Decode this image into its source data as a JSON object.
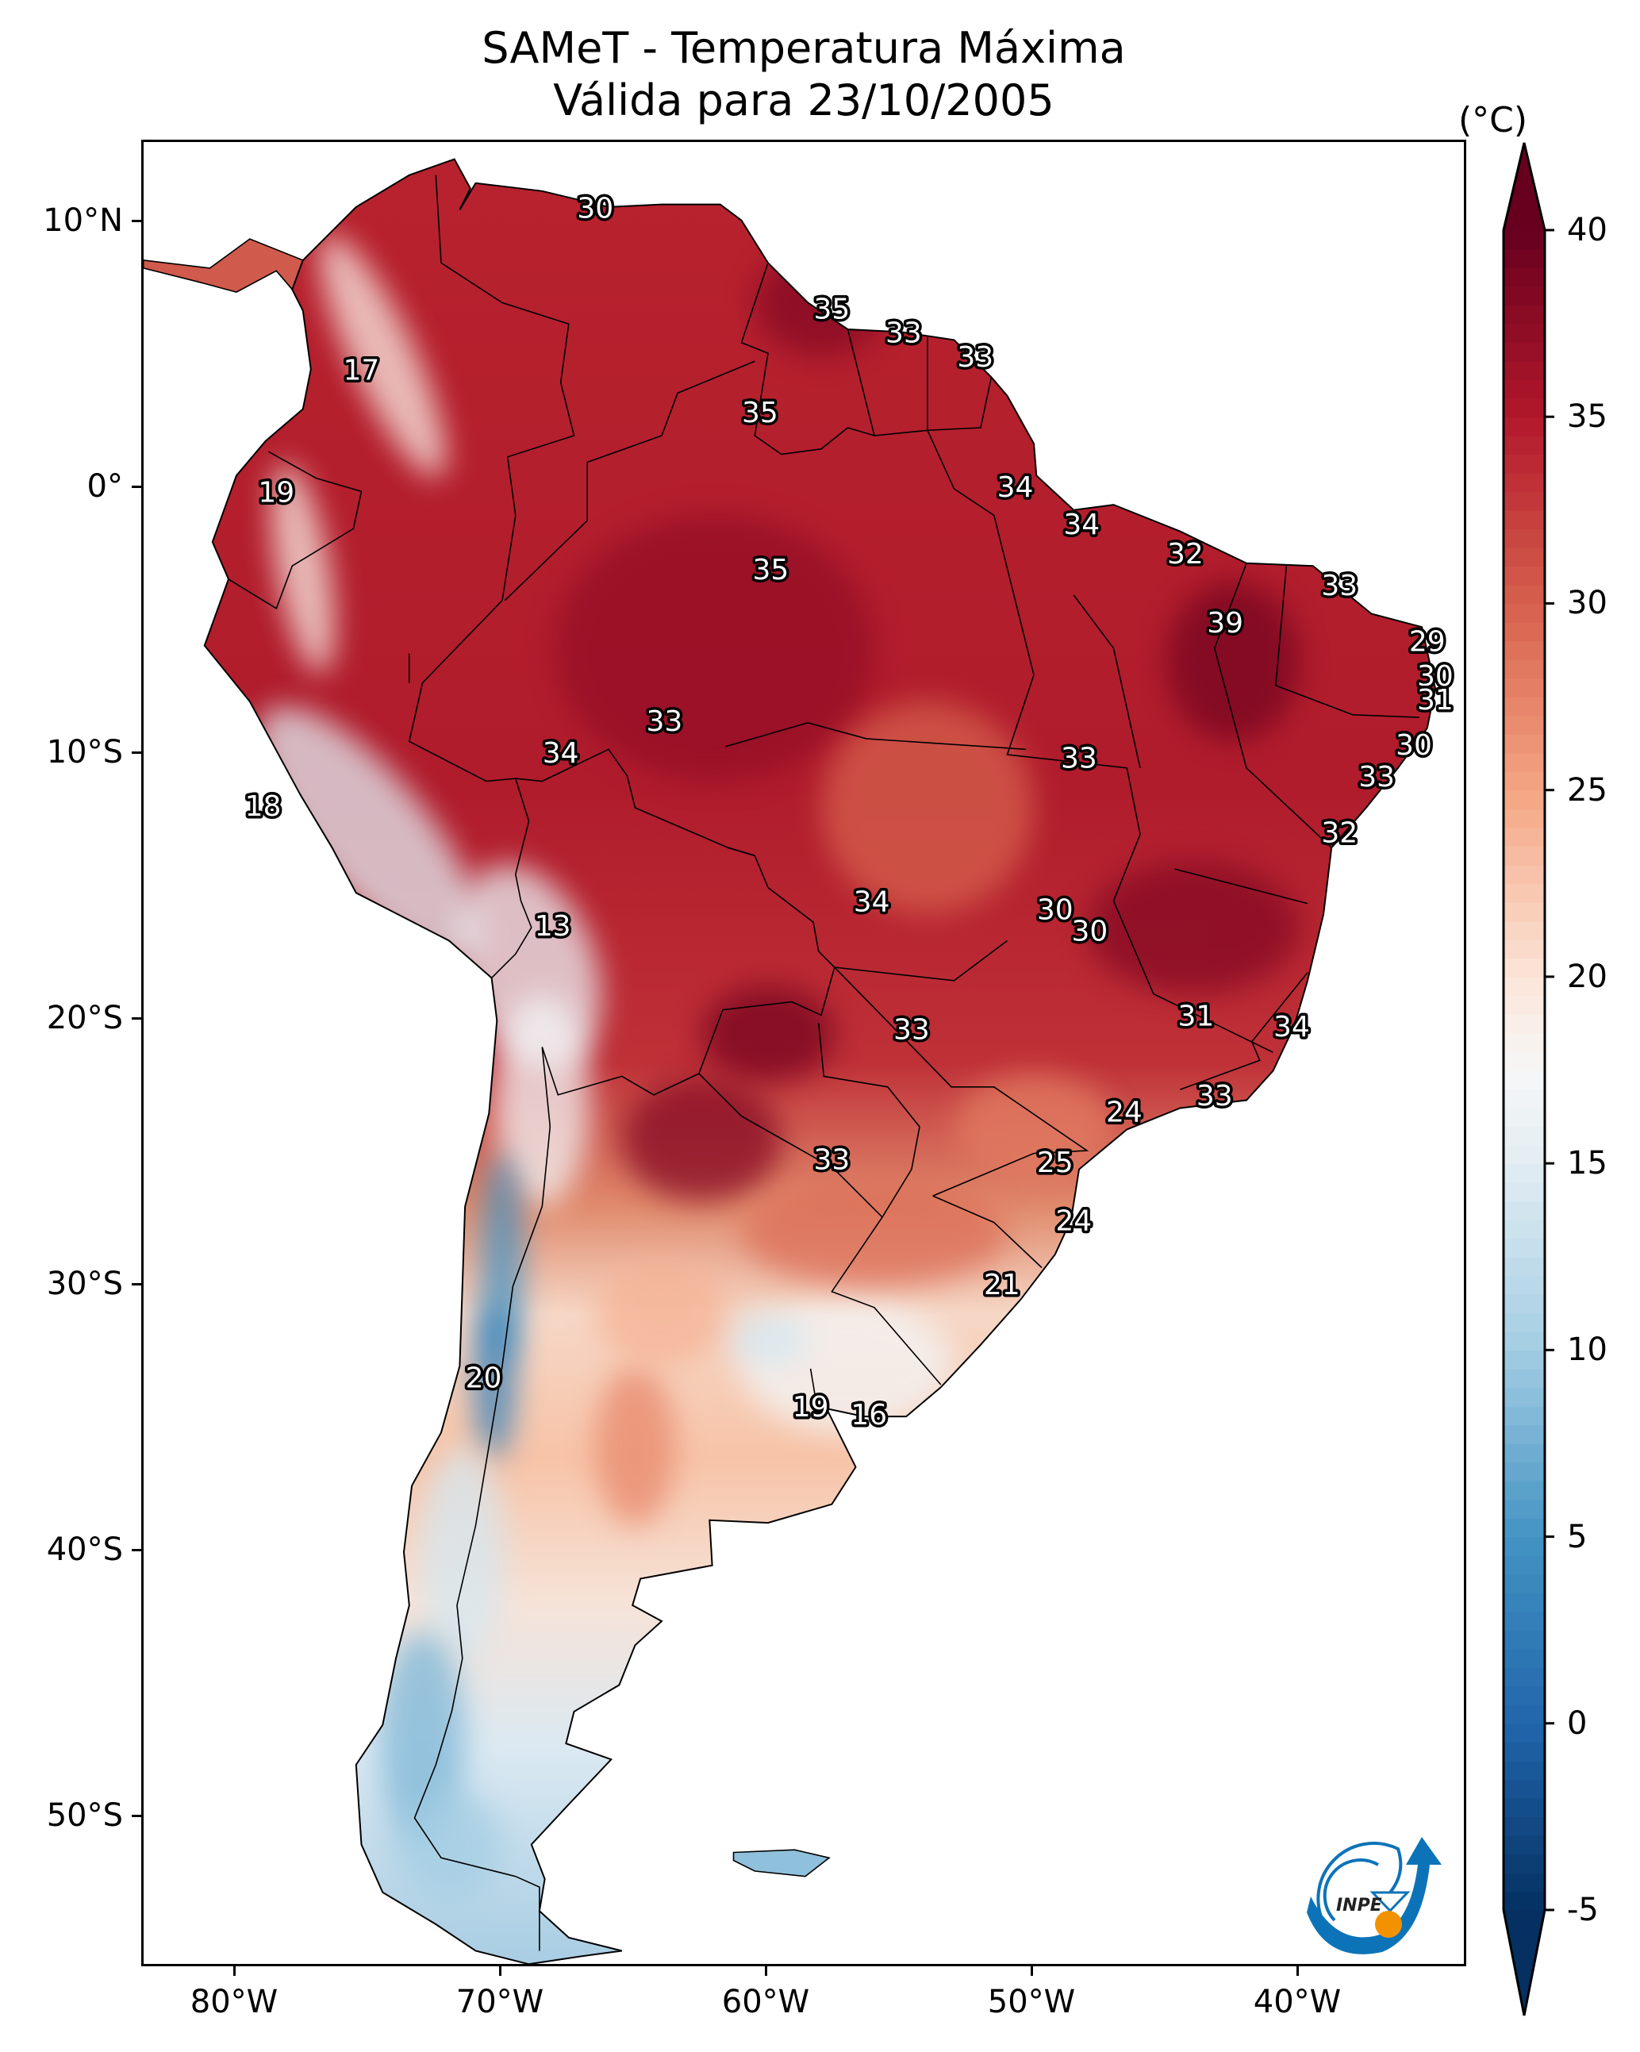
{
  "title": {
    "line1": "SAMeT - Temperatura Máxima",
    "line2": "Válida para 23/10/2005"
  },
  "chart_data": {
    "type": "heatmap",
    "title": "SAMeT - Temperatura Máxima",
    "subtitle": "Válida para 23/10/2005",
    "projection": "PlateCarree",
    "extent_lon": [
      -83.5,
      -33.5
    ],
    "extent_lat": [
      -56.5,
      12.5
    ],
    "x_ticks": [
      {
        "value": -80,
        "label": "80°W"
      },
      {
        "value": -70,
        "label": "70°W"
      },
      {
        "value": -60,
        "label": "60°W"
      },
      {
        "value": -50,
        "label": "50°W"
      },
      {
        "value": -40,
        "label": "40°W"
      }
    ],
    "y_ticks": [
      {
        "value": 10,
        "label": "10°N"
      },
      {
        "value": 0,
        "label": "0°"
      },
      {
        "value": -10,
        "label": "10°S"
      },
      {
        "value": -20,
        "label": "20°S"
      },
      {
        "value": -30,
        "label": "30°S"
      },
      {
        "value": -40,
        "label": "40°S"
      },
      {
        "value": -50,
        "label": "50°S"
      }
    ],
    "colorbar": {
      "label": "(°C)",
      "colormap": "RdBu_r",
      "vmin": -5,
      "vmax": 40,
      "extend": "both",
      "ticks": [
        40,
        35,
        30,
        25,
        20,
        15,
        10,
        5,
        0,
        -5
      ],
      "tick_labels": [
        "40",
        "35",
        "30",
        "25",
        "20",
        "15",
        "10",
        "5",
        "0",
        "-5"
      ],
      "stops": [
        {
          "v": -5,
          "c": "#053061"
        },
        {
          "v": 0,
          "c": "#2166ac"
        },
        {
          "v": 5,
          "c": "#4393c3"
        },
        {
          "v": 10,
          "c": "#a3cde3"
        },
        {
          "v": 15,
          "c": "#e2edf3"
        },
        {
          "v": 17.5,
          "c": "#f7f7f7"
        },
        {
          "v": 20,
          "c": "#fbe5d8"
        },
        {
          "v": 25,
          "c": "#f4a582"
        },
        {
          "v": 30,
          "c": "#d6604d"
        },
        {
          "v": 35,
          "c": "#b2182b"
        },
        {
          "v": 40,
          "c": "#67001f"
        }
      ]
    },
    "station_values": [
      {
        "lon": -66.5,
        "lat": 10.5,
        "value": 30
      },
      {
        "lon": -75.3,
        "lat": 4.4,
        "value": 17
      },
      {
        "lon": -78.5,
        "lat": -0.2,
        "value": 19
      },
      {
        "lon": -57.6,
        "lat": 6.7,
        "value": 35
      },
      {
        "lon": -54.9,
        "lat": 5.8,
        "value": 33
      },
      {
        "lon": -52.2,
        "lat": 4.9,
        "value": 33
      },
      {
        "lon": -60.3,
        "lat": 2.8,
        "value": 35
      },
      {
        "lon": -50.7,
        "lat": 0.0,
        "value": 34
      },
      {
        "lon": -48.2,
        "lat": -1.4,
        "value": 34
      },
      {
        "lon": -44.3,
        "lat": -2.5,
        "value": 32
      },
      {
        "lon": -38.5,
        "lat": -3.7,
        "value": 33
      },
      {
        "lon": -42.8,
        "lat": -5.1,
        "value": 39
      },
      {
        "lon": -59.9,
        "lat": -3.1,
        "value": 35
      },
      {
        "lon": -35.2,
        "lat": -5.8,
        "value": 29
      },
      {
        "lon": -34.9,
        "lat": -7.1,
        "value": 30
      },
      {
        "lon": -34.9,
        "lat": -8.0,
        "value": 31
      },
      {
        "lon": -35.7,
        "lat": -9.7,
        "value": 30
      },
      {
        "lon": -37.1,
        "lat": -10.9,
        "value": 33
      },
      {
        "lon": -38.5,
        "lat": -13.0,
        "value": 32
      },
      {
        "lon": -63.9,
        "lat": -8.8,
        "value": 33
      },
      {
        "lon": -67.8,
        "lat": -10.0,
        "value": 34
      },
      {
        "lon": -48.3,
        "lat": -10.2,
        "value": 33
      },
      {
        "lon": -79.0,
        "lat": -12.0,
        "value": 18
      },
      {
        "lon": -68.1,
        "lat": -16.5,
        "value": 13
      },
      {
        "lon": -56.1,
        "lat": -15.6,
        "value": 34
      },
      {
        "lon": -49.2,
        "lat": -15.9,
        "value": 30
      },
      {
        "lon": -47.9,
        "lat": -16.7,
        "value": 30
      },
      {
        "lon": -43.9,
        "lat": -19.9,
        "value": 31
      },
      {
        "lon": -40.3,
        "lat": -20.3,
        "value": 34
      },
      {
        "lon": -54.6,
        "lat": -20.4,
        "value": 33
      },
      {
        "lon": -43.2,
        "lat": -22.9,
        "value": 33
      },
      {
        "lon": -46.6,
        "lat": -23.5,
        "value": 24
      },
      {
        "lon": -57.6,
        "lat": -25.3,
        "value": 33
      },
      {
        "lon": -49.2,
        "lat": -25.4,
        "value": 25
      },
      {
        "lon": -48.5,
        "lat": -27.6,
        "value": 24
      },
      {
        "lon": -51.2,
        "lat": -30.0,
        "value": 21
      },
      {
        "lon": -70.7,
        "lat": -33.5,
        "value": 20
      },
      {
        "lon": -58.4,
        "lat": -34.6,
        "value": 19
      },
      {
        "lon": -56.2,
        "lat": -34.9,
        "value": 16
      }
    ]
  },
  "logo": {
    "text": "INPE",
    "colors": {
      "blue": "#0d73b8",
      "orange": "#f39200"
    }
  }
}
